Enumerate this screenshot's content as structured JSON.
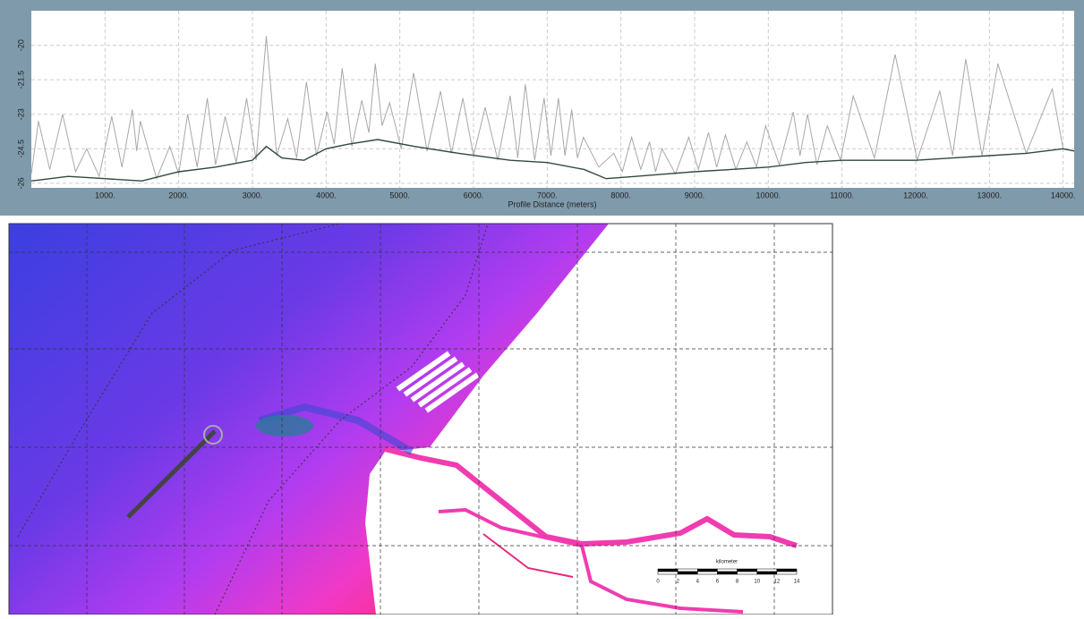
{
  "chart_data": {
    "type": "line",
    "xlabel": "Profile Distance (meters)",
    "xlim": [
      0,
      14150
    ],
    "ylim": [
      -26.2,
      -18.5
    ],
    "xticks": [
      {
        "value": 1000,
        "label": "1000."
      },
      {
        "value": 2000,
        "label": "2000."
      },
      {
        "value": 3000,
        "label": "3000."
      },
      {
        "value": 4000,
        "label": "4000."
      },
      {
        "value": 5000,
        "label": "5000."
      },
      {
        "value": 6000,
        "label": "6000."
      },
      {
        "value": 7000,
        "label": "7000."
      },
      {
        "value": 8000,
        "label": "8000."
      },
      {
        "value": 9000,
        "label": "9000."
      },
      {
        "value": 10000,
        "label": "10000."
      },
      {
        "value": 11000,
        "label": "11000."
      },
      {
        "value": 12000,
        "label": "12000."
      },
      {
        "value": 13000,
        "label": "13000."
      },
      {
        "value": 14000,
        "label": "14000."
      }
    ],
    "yticks": [
      -20,
      -21.5,
      -23,
      -24.5,
      -26
    ],
    "grid": true,
    "series": [
      {
        "color": "#a8a8a8",
        "x": [
          0,
          97,
          250,
          424,
          600,
          752,
          920,
          1091,
          1230,
          1370,
          1430,
          1479,
          1700,
          1879,
          2000,
          2121,
          2250,
          2388,
          2500,
          2630,
          2780,
          2921,
          3050,
          3188,
          3330,
          3479,
          3600,
          3733,
          3870,
          4012,
          4110,
          4218,
          4350,
          4485,
          4580,
          4667,
          4760,
          4861,
          5020,
          5188,
          5370,
          5552,
          5700,
          5855,
          6000,
          6158,
          6330,
          6497,
          6600,
          6703,
          6830,
          6958,
          7050,
          7152,
          7240,
          7333,
          7410,
          7491,
          7700,
          7903,
          8020,
          8145,
          8270,
          8388,
          8470,
          8557,
          8740,
          8921,
          9050,
          9188,
          9300,
          9418,
          9560,
          9709,
          9840,
          9964,
          10150,
          10339,
          10430,
          10533,
          10660,
          10800,
          10980,
          11152,
          11440,
          11721,
          12020,
          12327,
          12500,
          12679,
          12900,
          13115,
          13500,
          13853,
          14000,
          14150
        ],
        "values": [
          -25.6,
          -23.3,
          -25.4,
          -23,
          -25.5,
          -24.5,
          -25.7,
          -23.1,
          -25.3,
          -22.8,
          -24.6,
          -23.3,
          -25.8,
          -24.4,
          -25.6,
          -23,
          -25.3,
          -22.3,
          -25.2,
          -23.1,
          -25.1,
          -22.3,
          -25,
          -19.6,
          -24.8,
          -23.2,
          -24.9,
          -21.6,
          -24.8,
          -22.9,
          -24.3,
          -21,
          -24.4,
          -22.4,
          -23.8,
          -20.8,
          -23.5,
          -22.5,
          -24.5,
          -21.2,
          -24.6,
          -22,
          -24.7,
          -22.3,
          -24.8,
          -22.7,
          -25,
          -22.2,
          -24.9,
          -21.7,
          -25,
          -22.3,
          -24.8,
          -22.3,
          -24.8,
          -22.8,
          -24.9,
          -24,
          -25.3,
          -24.7,
          -25.5,
          -24,
          -25.4,
          -24.2,
          -25.5,
          -24.5,
          -25.6,
          -24,
          -25.4,
          -23.8,
          -25.3,
          -23.9,
          -25.4,
          -24.2,
          -25.3,
          -23.5,
          -25.2,
          -22.9,
          -24.8,
          -23,
          -25.2,
          -23.5,
          -25,
          -22.2,
          -24.9,
          -20.4,
          -25,
          -22,
          -24.8,
          -20.6,
          -24.8,
          -20.8,
          -24.7,
          -21.9,
          -24.5,
          -24.6
        ]
      },
      {
        "color": "#2f4a3c",
        "x": [
          0,
          500,
          1000,
          1500,
          2000,
          2500,
          3000,
          3188,
          3400,
          3700,
          4000,
          4300,
          4700,
          5200,
          5800,
          6500,
          7000,
          7500,
          7800,
          8200,
          8600,
          9000,
          9500,
          10000,
          10500,
          11000,
          11500,
          12000,
          12500,
          13000,
          13500,
          14000,
          14150
        ],
        "values": [
          -25.9,
          -25.7,
          -25.8,
          -25.9,
          -25.5,
          -25.3,
          -25,
          -24.4,
          -24.9,
          -25,
          -24.5,
          -24.3,
          -24.1,
          -24.4,
          -24.7,
          -25,
          -25.1,
          -25.4,
          -25.8,
          -25.7,
          -25.6,
          -25.5,
          -25.4,
          -25.3,
          -25.1,
          -25,
          -25,
          -25,
          -24.9,
          -24.8,
          -24.7,
          -24.5,
          -24.6
        ]
      }
    ]
  },
  "map": {
    "scale_label": "kilometer",
    "scale_ticks": [
      0,
      2,
      4,
      6,
      8,
      10,
      12,
      14
    ]
  }
}
